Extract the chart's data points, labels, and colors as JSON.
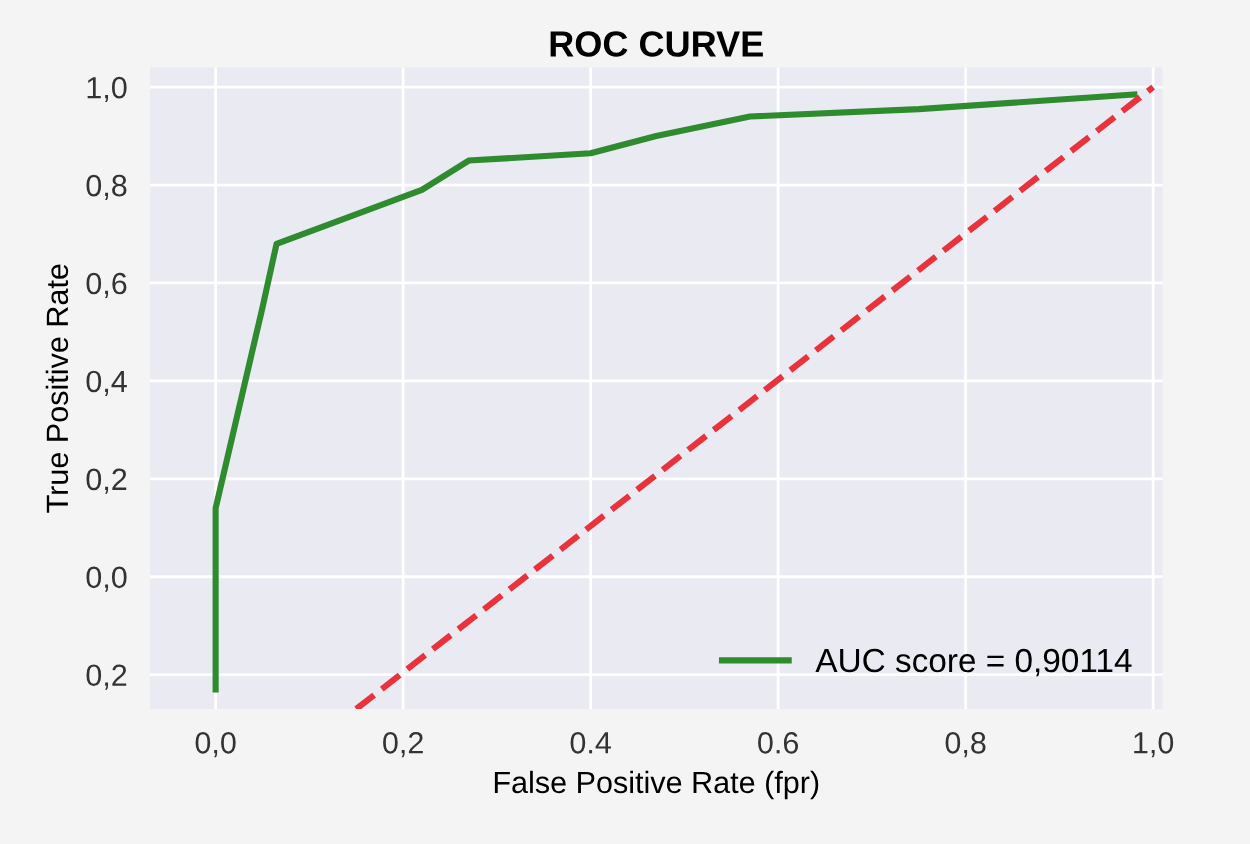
{
  "chart_data": {
    "type": "line",
    "title": "ROC CURVE",
    "xlabel": "False Positive Rate (fpr)",
    "ylabel": "True Positive Rate",
    "series": [
      {
        "name": "AUC score = 0,90114",
        "color": "#2e8b2e",
        "line_style": "solid",
        "x": [
          0,
          0,
          0.05,
          0.065,
          0.22,
          0.27,
          0.4,
          0.47,
          0.57,
          0.75,
          0.98
        ],
        "values": [
          -0.23,
          0.14,
          0.55,
          0.68,
          0.79,
          0.85,
          0.865,
          0.9,
          0.94,
          0.955,
          0.985
        ]
      },
      {
        "color": "#e8323c",
        "line_style": "dashed",
        "x": [
          0.15,
          1.0
        ],
        "values": [
          -0.27,
          1.0
        ]
      }
    ],
    "xlim": [
      -0.07,
      1.01
    ],
    "ylim": [
      -0.27,
      1.04
    ],
    "xticks": [
      {
        "value": 0,
        "label": "0,0"
      },
      {
        "value": 0.2,
        "label": "0,2"
      },
      {
        "value": 0.4,
        "label": "0.4"
      },
      {
        "value": 0.6,
        "label": "0.6"
      },
      {
        "value": 0.8,
        "label": "0,8"
      },
      {
        "value": 1.0,
        "label": "1,0"
      }
    ],
    "yticks": [
      {
        "value": -0.2,
        "label": "0,2"
      },
      {
        "value": 0,
        "label": "0,0"
      },
      {
        "value": 0.2,
        "label": "0,2"
      },
      {
        "value": 0.4,
        "label": "0,4"
      },
      {
        "value": 0.6,
        "label": "0,6"
      },
      {
        "value": 0.8,
        "label": "0,8"
      },
      {
        "value": 1.0,
        "label": "1,0"
      }
    ],
    "grid": true,
    "legend": "bottom right"
  }
}
